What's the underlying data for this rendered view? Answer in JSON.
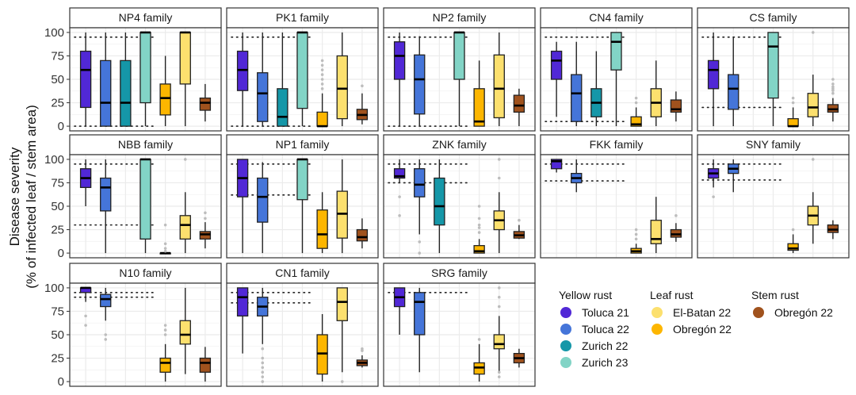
{
  "chart_data": {
    "type": "box",
    "ylabel_line1": "Disease severity",
    "ylabel_line2": "(% of infected leaf / stem area)",
    "ylim": [
      0,
      100
    ],
    "yticks": [
      0,
      25,
      50,
      75,
      100
    ],
    "grid": true,
    "legend_position": "bottom-right",
    "series_order": [
      "Toluca 21",
      "Toluca 22",
      "Zurich 22",
      "Zurich 23",
      "Obregón 22 (leaf)",
      "El-Batan 22",
      "Obregón 22 (stem)"
    ],
    "legend": [
      {
        "title": "Yellow rust",
        "items": [
          {
            "label": "Toluca 21",
            "color": "#5128D6"
          },
          {
            "label": "Toluca 22",
            "color": "#4575D9"
          },
          {
            "label": "Zurich 22",
            "color": "#1597A8"
          },
          {
            "label": "Zurich 23",
            "color": "#82D4C6"
          }
        ]
      },
      {
        "title": "Leaf rust",
        "items": [
          {
            "label": "El-Batan 22",
            "color": "#FCE06E"
          },
          {
            "label": "Obregón 22",
            "color": "#FDB600"
          }
        ]
      },
      {
        "title": "Stem rust",
        "items": [
          {
            "label": "Obregón 22",
            "color": "#A0521D"
          }
        ]
      }
    ],
    "series_colors": [
      "#5128D6",
      "#4575D9",
      "#1597A8",
      "#82D4C6",
      "#FDB600",
      "#FCE06E",
      "#A0521D"
    ],
    "panels": [
      {
        "title": "NP4 family",
        "parent_lines": [
          95,
          0
        ],
        "boxes": [
          [
            0,
            20,
            60,
            80,
            100,
            []
          ],
          [
            0,
            0,
            25,
            70,
            100,
            []
          ],
          [
            0,
            0,
            25,
            70,
            100,
            []
          ],
          [
            0,
            25,
            100,
            100,
            100,
            []
          ],
          [
            0,
            12,
            30,
            45,
            75,
            []
          ],
          [
            0,
            45,
            100,
            100,
            100,
            []
          ],
          [
            5,
            17,
            25,
            30,
            45,
            []
          ]
        ]
      },
      {
        "title": "PK1 family",
        "parent_lines": [
          95,
          0
        ],
        "boxes": [
          [
            0,
            38,
            60,
            80,
            100,
            []
          ],
          [
            0,
            5,
            35,
            57,
            100,
            []
          ],
          [
            0,
            0,
            10,
            40,
            100,
            []
          ],
          [
            0,
            19,
            100,
            100,
            100,
            []
          ],
          [
            0,
            0,
            0,
            15,
            35,
            [
              40,
              45,
              50,
              55,
              60,
              65,
              70
            ]
          ],
          [
            0,
            8,
            40,
            75,
            100,
            []
          ],
          [
            2,
            7,
            12,
            18,
            35,
            [
              43
            ]
          ]
        ]
      },
      {
        "title": "NP2 family",
        "parent_lines": [
          95,
          0
        ],
        "boxes": [
          [
            0,
            50,
            75,
            90,
            100,
            []
          ],
          [
            0,
            13,
            50,
            76,
            96,
            []
          ],
          null,
          [
            0,
            50,
            100,
            100,
            100,
            []
          ],
          [
            0,
            0,
            5,
            40,
            70,
            []
          ],
          [
            0,
            9,
            40,
            76,
            100,
            []
          ],
          [
            0,
            15,
            22,
            33,
            40,
            []
          ]
        ]
      },
      {
        "title": "CN4 family",
        "parent_lines": [
          95,
          5
        ],
        "boxes": [
          [
            10,
            50,
            70,
            80,
            90,
            []
          ],
          [
            0,
            5,
            35,
            55,
            90,
            []
          ],
          [
            0,
            10,
            25,
            40,
            80,
            []
          ],
          [
            0,
            60,
            90,
            100,
            100,
            []
          ],
          [
            0,
            0,
            2,
            10,
            20,
            [
              25,
              30
            ]
          ],
          [
            0,
            10,
            25,
            40,
            70,
            []
          ],
          [
            5,
            15,
            18,
            28,
            37,
            []
          ]
        ]
      },
      {
        "title": "CS family",
        "parent_lines": [
          95,
          20
        ],
        "boxes": [
          [
            0,
            40,
            60,
            70,
            100,
            []
          ],
          [
            0,
            18,
            40,
            55,
            95,
            []
          ],
          null,
          [
            0,
            30,
            85,
            100,
            100,
            []
          ],
          [
            0,
            0,
            0,
            8,
            20,
            [
              25,
              30
            ]
          ],
          [
            0,
            10,
            20,
            35,
            55,
            [
              100
            ]
          ],
          [
            5,
            15,
            18,
            23,
            30,
            [
              35,
              38,
              40,
              42,
              45,
              50
            ]
          ]
        ]
      },
      {
        "title": "NBB family",
        "parent_lines": [
          95,
          30
        ],
        "boxes": [
          [
            50,
            70,
            80,
            90,
            100,
            []
          ],
          [
            0,
            45,
            70,
            80,
            100,
            []
          ],
          null,
          [
            0,
            15,
            100,
            100,
            100,
            []
          ],
          [
            0,
            0,
            0,
            0,
            0,
            [
              2,
              5,
              10,
              30
            ]
          ],
          [
            0,
            15,
            30,
            40,
            65,
            [
              100
            ]
          ],
          [
            5,
            15,
            20,
            23,
            33,
            [
              37,
              43
            ]
          ]
        ]
      },
      {
        "title": "NP1 family",
        "parent_lines": [
          95,
          62
        ],
        "boxes": [
          [
            0,
            60,
            80,
            100,
            100,
            []
          ],
          [
            0,
            33,
            60,
            80,
            97,
            []
          ],
          null,
          [
            0,
            57,
            100,
            100,
            100,
            []
          ],
          [
            0,
            5,
            20,
            46,
            65,
            []
          ],
          [
            0,
            16,
            42,
            66,
            100,
            []
          ],
          [
            5,
            13,
            17,
            25,
            37,
            []
          ]
        ]
      },
      {
        "title": "ZNK family",
        "parent_lines": [
          95,
          75
        ],
        "boxes": [
          [
            75,
            80,
            82,
            90,
            100,
            [
              60,
              40
            ]
          ],
          [
            20,
            60,
            73,
            90,
            100,
            [
              12,
              0
            ]
          ],
          [
            0,
            30,
            50,
            80,
            100,
            []
          ],
          null,
          [
            0,
            0,
            2,
            8,
            15,
            [
              22,
              27,
              30,
              37,
              50
            ]
          ],
          [
            0,
            25,
            35,
            45,
            65,
            [
              80,
              100
            ]
          ],
          [
            15,
            16,
            19,
            23,
            30,
            [
              35
            ]
          ]
        ]
      },
      {
        "title": "FKK family",
        "parent_lines": [
          95,
          77
        ],
        "boxes": [
          [
            86,
            90,
            98,
            100,
            100,
            []
          ],
          [
            65,
            75,
            80,
            85,
            100,
            []
          ],
          null,
          null,
          [
            0,
            0,
            2,
            5,
            10,
            [
              15,
              20,
              25
            ]
          ],
          [
            0,
            10,
            15,
            35,
            60,
            []
          ],
          [
            12,
            17,
            20,
            25,
            32,
            [
              40
            ]
          ]
        ]
      },
      {
        "title": "SNY family",
        "parent_lines": [
          95,
          78
        ],
        "boxes": [
          [
            70,
            80,
            85,
            90,
            100,
            [
              60
            ]
          ],
          [
            65,
            85,
            90,
            95,
            100,
            []
          ],
          null,
          null,
          [
            0,
            3,
            5,
            10,
            20,
            [
              25
            ]
          ],
          [
            10,
            30,
            40,
            50,
            65,
            [
              100
            ]
          ],
          [
            15,
            22,
            25,
            30,
            35,
            []
          ]
        ]
      },
      {
        "title": "N10 family",
        "parent_lines": [
          95,
          90
        ],
        "boxes": [
          [
            85,
            95,
            100,
            100,
            100,
            [
              70,
              60
            ]
          ],
          [
            65,
            80,
            88,
            93,
            100,
            [
              50,
              45
            ]
          ],
          null,
          null,
          [
            0,
            10,
            20,
            25,
            40,
            [
              50,
              55,
              60
            ]
          ],
          [
            8,
            40,
            50,
            65,
            100,
            []
          ],
          [
            0,
            10,
            20,
            25,
            37,
            []
          ]
        ]
      },
      {
        "title": "CN1 family",
        "parent_lines": [
          95,
          84
        ],
        "boxes": [
          [
            30,
            70,
            90,
            100,
            100,
            []
          ],
          [
            40,
            70,
            80,
            90,
            100,
            [
              0,
              5,
              10,
              15,
              20,
              25,
              35
            ]
          ],
          null,
          null,
          [
            0,
            8,
            30,
            50,
            72,
            []
          ],
          [
            10,
            65,
            85,
            100,
            100,
            [
              0
            ]
          ],
          [
            15,
            17,
            20,
            23,
            28,
            [
              33,
              35
            ]
          ]
        ]
      },
      {
        "title": "SRG family",
        "parent_lines": [
          95
        ],
        "boxes": [
          [
            50,
            80,
            90,
            100,
            100,
            []
          ],
          [
            10,
            50,
            85,
            95,
            100,
            []
          ],
          null,
          null,
          [
            0,
            8,
            15,
            20,
            40,
            [
              45
            ]
          ],
          [
            10,
            35,
            40,
            50,
            70,
            [
              5,
              10,
              80,
              90,
              100
            ]
          ],
          [
            15,
            20,
            25,
            30,
            35,
            []
          ]
        ]
      }
    ]
  }
}
